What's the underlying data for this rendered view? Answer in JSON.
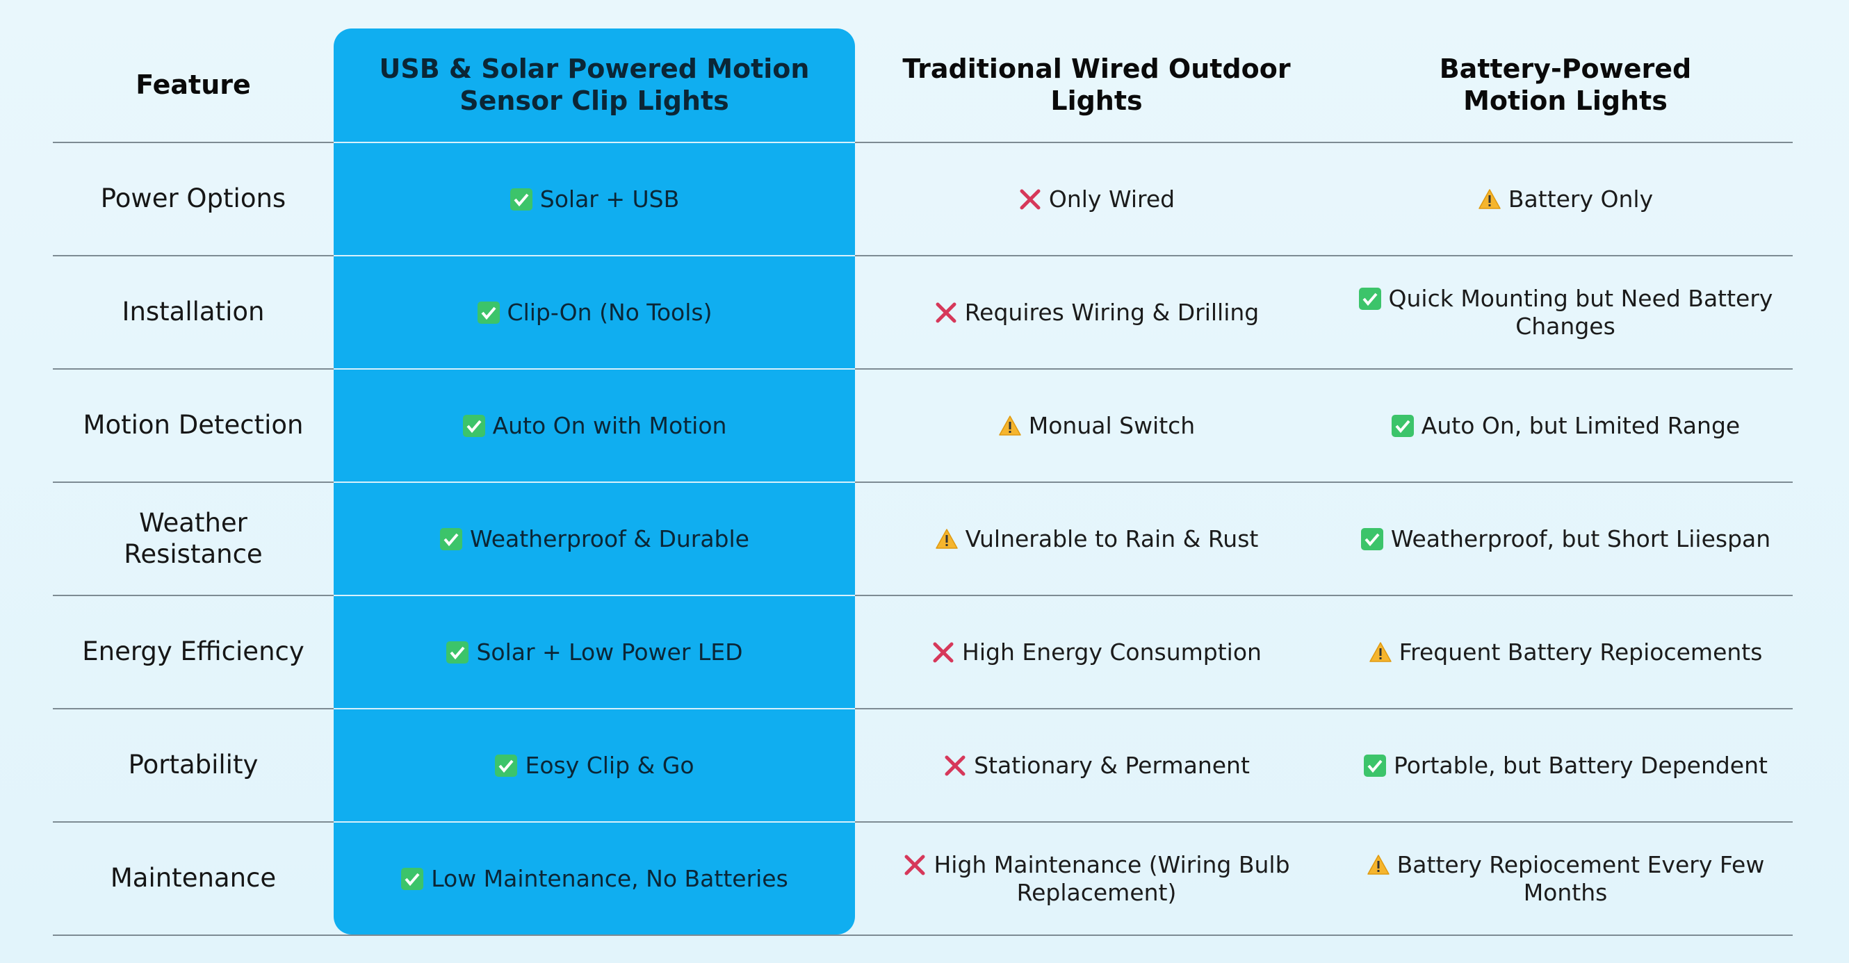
{
  "header": [
    "Feature",
    "USB & Solar Powered Motion Sensor Clip Lights",
    "Traditional Wired Outdoor Lights",
    "Battery-Powered Motion Lights"
  ],
  "rows": [
    [
      "Power Options",
      "Solar + USB",
      "Only Wired",
      "Battery Only"
    ],
    [
      "Installation",
      "Clip-On (No Tools)",
      "Requires Wiring & Drilling",
      "Quick Mounting but Need Battery Changes"
    ],
    [
      "Motion Detection",
      "Auto On with Motion",
      "Monual Switch",
      "Auto On, but Limited Range"
    ],
    [
      "Weather Resistance",
      "Weatherproof & Durable",
      "Vulnerable to Rain & Rust",
      "Weatherproof, but Short Liiespan"
    ],
    [
      "Energy Efficiency",
      "Solar + Low Power LED",
      "High Energy Consumption",
      "Frequent Battery Repiocements"
    ],
    [
      "Portability",
      "Eosy Clip & Go",
      "Stationary & Permanent",
      "Portable, but Battery Dependent"
    ],
    [
      "Maintenance",
      "Low Maintenance, No Batteries",
      "High Maintenance (Wiring Bulb Replacement)",
      "Battery Repiocement Every Few Months"
    ]
  ]
}
